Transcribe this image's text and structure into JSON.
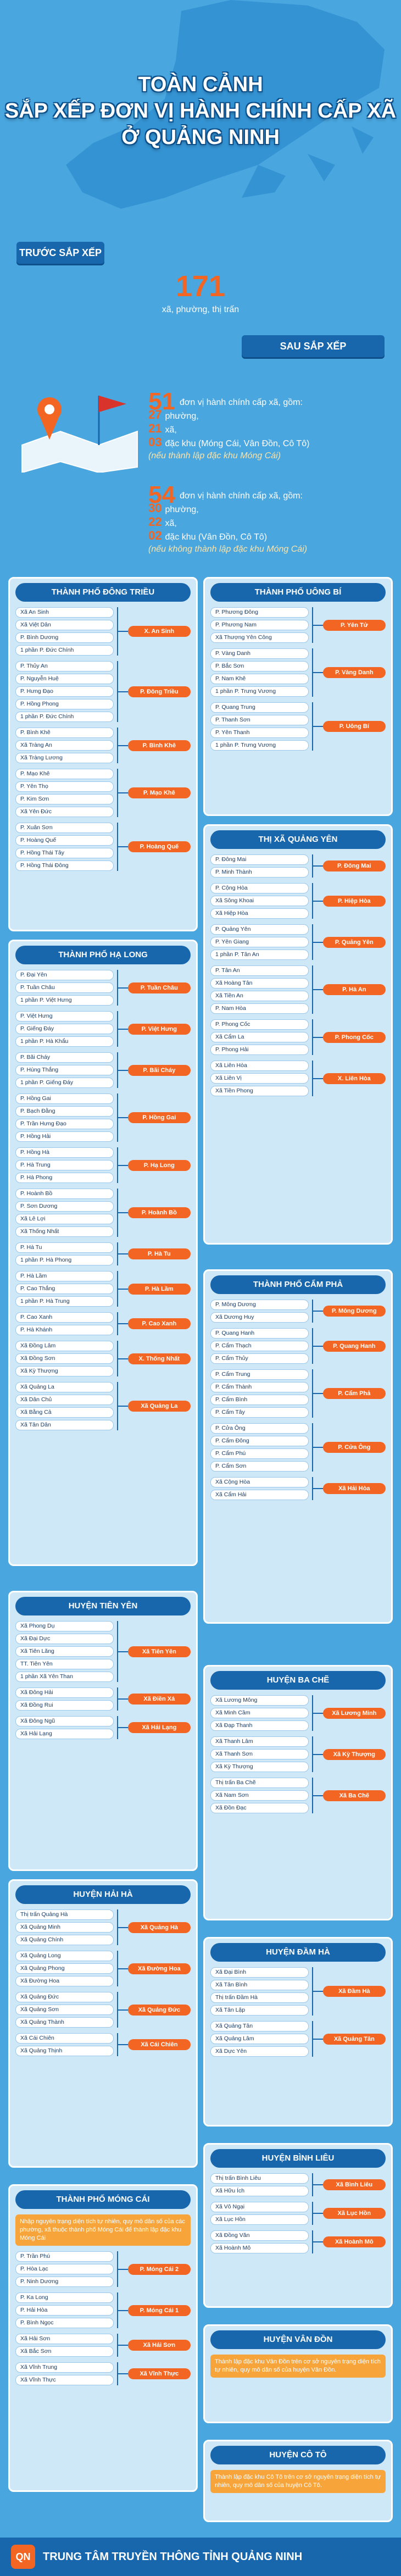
{
  "header": {
    "title_lines": [
      "TOÀN CẢNH",
      "SẮP XẾP ĐƠN VỊ HÀNH CHÍNH CẤP XÃ",
      "Ở QUẢNG NINH"
    ]
  },
  "summary": {
    "before_label": "TRƯỚC SẮP XẾP",
    "before_count": 171,
    "before_text": "xã, phường, thị trấn",
    "after_label": "SAU SẮP XẾP",
    "options": [
      {
        "count": 51,
        "text": "đơn vị hành chính cấp xã, gồm:",
        "items": [
          {
            "num": 27,
            "text": "phường,"
          },
          {
            "num": 21,
            "text": "xã,"
          },
          {
            "num": "03",
            "text": "đặc khu (Móng Cái, Vân Đồn, Cô Tô)"
          }
        ],
        "condition": "(nếu thành lập đặc khu Móng Cái)"
      },
      {
        "count": 54,
        "text": "đơn vị hành chính cấp xã, gồm:",
        "items": [
          {
            "num": 30,
            "text": "phường,"
          },
          {
            "num": 22,
            "text": "xã,"
          },
          {
            "num": "02",
            "text": "đặc khu (Vân Đồn, Cô Tô)"
          }
        ],
        "condition": "(nếu không thành lập đặc khu Móng Cái)"
      }
    ]
  },
  "sections": [
    {
      "title": "THÀNH PHỐ ĐÔNG TRIỀU",
      "groups": [
        {
          "old": [
            "Xã An Sinh",
            "Xã Việt Dân",
            "P. Bình Dương",
            "1 phần P. Đức Chính"
          ],
          "new": "X. An Sinh"
        },
        {
          "old": [
            "P. Thủy An",
            "P. Nguyễn Huệ",
            "P. Hưng Đạo",
            "P. Hồng Phong",
            "1 phần P. Đức Chính"
          ],
          "new": "P. Đông Triều"
        },
        {
          "old": [
            "P. Bình Khê",
            "Xã Tràng An",
            "Xã Tràng Lương"
          ],
          "new": "P. Bình Khê"
        },
        {
          "old": [
            "P. Mạo Khê",
            "P. Yên Thọ",
            "P. Kim Sơn",
            "Xã Yên Đức"
          ],
          "new": "P. Mạo Khê"
        },
        {
          "old": [
            "P. Xuân Sơn",
            "P. Hoàng Quế",
            "P. Hồng Thái Tây",
            "P. Hồng Thái Đông"
          ],
          "new": "P. Hoàng Quế"
        }
      ]
    },
    {
      "title": "THÀNH PHỐ UÔNG BÍ",
      "groups": [
        {
          "old": [
            "P. Phương Đông",
            "P. Phương Nam",
            "Xã Thượng Yên Công"
          ],
          "new": "P. Yên Tử"
        },
        {
          "old": [
            "P. Vàng Danh",
            "P. Bắc Sơn",
            "P. Nam Khê",
            "1 phần P. Trưng Vương"
          ],
          "new": "P. Vàng Danh"
        },
        {
          "old": [
            "P. Quang Trung",
            "P. Thanh Sơn",
            "P. Yên Thanh",
            "1 phần P. Trưng Vương"
          ],
          "new": "P. Uông Bí"
        }
      ]
    },
    {
      "title": "THỊ XÃ QUẢNG YÊN",
      "groups": [
        {
          "old": [
            "P. Đông Mai",
            "P. Minh Thành"
          ],
          "new": "P. Đông Mai"
        },
        {
          "old": [
            "P. Cộng Hòa",
            "Xã Sông Khoai",
            "Xã Hiệp Hòa"
          ],
          "new": "P. Hiệp Hòa"
        },
        {
          "old": [
            "P. Quảng Yên",
            "P. Yên Giang",
            "1 phần P. Tân An"
          ],
          "new": "P. Quảng Yên"
        },
        {
          "old": [
            "P. Tân An",
            "Xã Hoàng Tân",
            "Xã Tiền An",
            "P. Nam Hòa"
          ],
          "new": "P. Hà An"
        },
        {
          "old": [
            "P. Phong Cốc",
            "Xã Cẩm La",
            "P. Phong Hải"
          ],
          "new": "P. Phong Cốc"
        },
        {
          "old": [
            "Xã Liên Hòa",
            "Xã Liên Vị",
            "Xã Tiền Phong"
          ],
          "new": "X. Liên Hòa"
        }
      ]
    },
    {
      "title": "THÀNH PHỐ HẠ LONG",
      "groups": [
        {
          "old": [
            "P. Đại Yên",
            "P. Tuần Châu",
            "1 phần P. Việt Hưng"
          ],
          "new": "P. Tuần Châu"
        },
        {
          "old": [
            "P. Việt Hưng",
            "P. Giếng Đáy",
            "1 phần P. Hà Khẩu"
          ],
          "new": "P. Việt Hưng"
        },
        {
          "old": [
            "P. Bãi Cháy",
            "P. Hùng Thắng",
            "1 phần P. Giếng Đáy"
          ],
          "new": "P. Bãi Cháy"
        },
        {
          "old": [
            "P. Hồng Gai",
            "P. Bạch Đằng",
            "P. Trần Hưng Đạo",
            "P. Hồng Hải"
          ],
          "new": "P. Hồng Gai"
        },
        {
          "old": [
            "P. Hồng Hà",
            "P. Hà Trung",
            "P. Hà Phong"
          ],
          "new": "P. Hạ Long"
        },
        {
          "old": [
            "P. Hoành Bồ",
            "P. Sơn Dương",
            "Xã Lê Lợi",
            "Xã Thống Nhất"
          ],
          "new": "P. Hoành Bồ"
        },
        {
          "old": [
            "P. Hà Tu",
            "1 phần P. Hà Phong"
          ],
          "new": "P. Hà Tu"
        },
        {
          "old": [
            "P. Hà Lầm",
            "P. Cao Thắng",
            "1 phần P. Hà Trung"
          ],
          "new": "P. Hà Lầm"
        },
        {
          "old": [
            "P. Cao Xanh",
            "P. Hà Khánh"
          ],
          "new": "P. Cao Xanh"
        },
        {
          "old": [
            "Xã Đồng Lâm",
            "Xã Đồng Sơn",
            "Xã Kỳ Thượng"
          ],
          "new": "X. Thống Nhất"
        },
        {
          "old": [
            "Xã Quảng La",
            "Xã Dân Chủ",
            "Xã Bằng Cả",
            "Xã Tân Dân"
          ],
          "new": "Xã Quảng La"
        }
      ]
    },
    {
      "title": "THÀNH PHỐ CẨM PHẢ",
      "groups": [
        {
          "old": [
            "P. Mông Dương",
            "Xã Dương Huy"
          ],
          "new": "P. Mông Dương"
        },
        {
          "old": [
            "P. Quang Hanh",
            "P. Cẩm Thạch",
            "P. Cẩm Thủy"
          ],
          "new": "P. Quang Hanh"
        },
        {
          "old": [
            "P. Cẩm Trung",
            "P. Cẩm Thành",
            "P. Cẩm Bình",
            "P. Cẩm Tây"
          ],
          "new": "P. Cẩm Phả"
        },
        {
          "old": [
            "P. Cửa Ông",
            "P. Cẩm Đông",
            "P. Cẩm Phú",
            "P. Cẩm Sơn"
          ],
          "new": "P. Cửa Ông"
        },
        {
          "old": [
            "Xã Cộng Hòa",
            "Xã Cẩm Hải"
          ],
          "new": "Xã Hải Hòa"
        }
      ]
    },
    {
      "title": "HUYỆN TIÊN YÊN",
      "groups": [
        {
          "old": [
            "Xã Phong Dụ",
            "Xã Đại Dực",
            "Xã Tiên Lãng",
            "TT. Tiên Yên",
            "1 phần Xã Yên Than"
          ],
          "new": "Xã Tiên Yên"
        },
        {
          "old": [
            "Xã Đông Hải",
            "Xã Đồng Rui"
          ],
          "new": "Xã Điền Xá"
        },
        {
          "old": [
            "Xã Đông Ngũ",
            "Xã Hải Lạng"
          ],
          "new": "Xã Hải Lạng"
        }
      ]
    },
    {
      "title": "HUYỆN BA CHẼ",
      "groups": [
        {
          "old": [
            "Xã Lương Mông",
            "Xã Minh Cầm",
            "Xã Đạp Thanh"
          ],
          "new": "Xã Lương Minh"
        },
        {
          "old": [
            "Xã Thanh Lâm",
            "Xã Thanh Sơn",
            "Xã Kỳ Thượng"
          ],
          "new": "Xã Kỳ Thượng"
        },
        {
          "old": [
            "Thị trấn Ba Chẽ",
            "Xã Nam Sơn",
            "Xã Đồn Đạc"
          ],
          "new": "Xã Ba Chẽ"
        }
      ]
    },
    {
      "title": "HUYỆN HẢI HÀ",
      "groups": [
        {
          "old": [
            "Thị trấn Quảng Hà",
            "Xã Quảng Minh",
            "Xã Quảng Chính"
          ],
          "new": "Xã Quảng Hà"
        },
        {
          "old": [
            "Xã Quảng Long",
            "Xã Quảng Phong",
            "Xã Đường Hoa"
          ],
          "new": "Xã Đường Hoa"
        },
        {
          "old": [
            "Xã Quảng Đức",
            "Xã Quảng Sơn",
            "Xã Quảng Thành"
          ],
          "new": "Xã Quảng Đức"
        },
        {
          "old": [
            "Xã Cái Chiên",
            "Xã Quảng Thịnh"
          ],
          "new": "Xã Cái Chiên"
        }
      ]
    },
    {
      "title": "HUYỆN ĐẦM HÀ",
      "groups": [
        {
          "old": [
            "Xã Đại Bình",
            "Xã Tân Bình",
            "Thị trấn Đầm Hà",
            "Xã Tân Lập"
          ],
          "new": "Xã Đầm Hà"
        },
        {
          "old": [
            "Xã Quảng Tân",
            "Xã Quảng Lâm",
            "Xã Dực Yên"
          ],
          "new": "Xã Quảng Tân"
        }
      ]
    },
    {
      "title": "THÀNH PHỐ MÓNG CÁI",
      "note": "Nhập nguyên trạng diện tích tự nhiên, quy mô dân số của các phường, xã thuộc thành phố Móng Cái để thành lập đặc khu Móng Cái",
      "groups": [
        {
          "old": [
            "P. Trần Phú",
            "P. Hòa Lạc",
            "P. Ninh Dương"
          ],
          "new": "P. Móng Cái 2"
        },
        {
          "old": [
            "P. Ka Long",
            "P. Hải Hòa",
            "P. Bình Ngọc"
          ],
          "new": "P. Móng Cái 1"
        },
        {
          "old": [
            "Xã Hải Sơn",
            "Xã Bắc Sơn"
          ],
          "new": "Xã Hải Sơn"
        },
        {
          "old": [
            "Xã Vĩnh Trung",
            "Xã Vĩnh Thực"
          ],
          "new": "Xã Vĩnh Thực"
        }
      ]
    },
    {
      "title": "HUYỆN BÌNH LIÊU",
      "groups": [
        {
          "old": [
            "Thị trấn Bình Liêu",
            "Xã Hữu Ích"
          ],
          "new": "Xã Bình Liêu"
        },
        {
          "old": [
            "Xã Vô Ngại",
            "Xã Lục Hồn"
          ],
          "new": "Xã Lục Hồn"
        },
        {
          "old": [
            "Xã Đồng Văn",
            "Xã Hoành Mô"
          ],
          "new": "Xã Hoành Mô"
        }
      ]
    },
    {
      "title": "HUYỆN VÂN ĐỒN",
      "note": "Thành lập đặc khu Vân Đồn trên cơ sở nguyên trạng diện tích tự nhiên, quy mô dân số của huyện Vân Đồn.",
      "groups": []
    },
    {
      "title": "HUYỆN CÔ TÔ",
      "note": "Thành lập đặc khu Cô Tô trên cơ sở nguyên trạng diện tích tự nhiên, quy mô dân số của huyện Cô Tô.",
      "groups": []
    }
  ],
  "footer": {
    "logo": "QN",
    "org": "TRUNG TÂM TRUYỀN THÔNG TỈNH QUẢNG NINH"
  }
}
